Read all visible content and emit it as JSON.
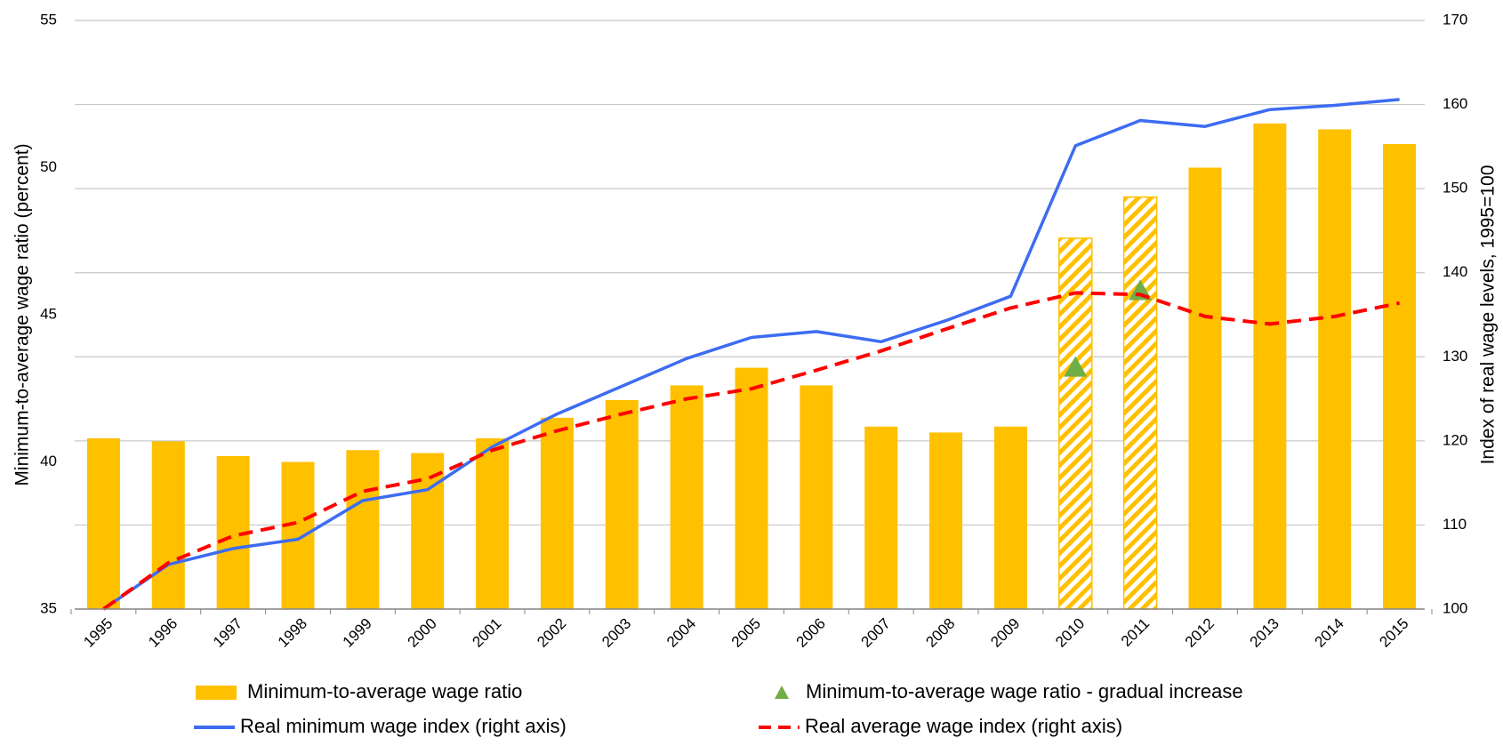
{
  "chart_data": {
    "type": "combo",
    "y_label": "Minimum-to-average wage ratio (percent)",
    "y2_label": "Index of real wage levels, 1995=100",
    "categories": [
      "1995",
      "1996",
      "1997",
      "1998",
      "1999",
      "2000",
      "2001",
      "2002",
      "2003",
      "2004",
      "2005",
      "2006",
      "2007",
      "2008",
      "2009",
      "2010",
      "2011",
      "2012",
      "2013",
      "2014",
      "2015"
    ],
    "ylim": [
      35,
      55
    ],
    "yticks": [
      35,
      40,
      45,
      50,
      55
    ],
    "y2lim": [
      100,
      170
    ],
    "y2ticks": [
      100,
      110,
      120,
      130,
      140,
      150,
      160,
      170
    ],
    "grid": true,
    "series": [
      {
        "name": "Minimum-to-average wage ratio",
        "type": "bar",
        "color": "#ffc000",
        "values": [
          40.8,
          40.7,
          40.2,
          40.0,
          40.4,
          40.3,
          40.8,
          41.5,
          42.1,
          42.6,
          43.2,
          42.6,
          41.2,
          41.0,
          41.2,
          47.6,
          49.0,
          50.0,
          51.5,
          51.3,
          50.8
        ],
        "pattern": [
          "solid",
          "solid",
          "solid",
          "solid",
          "solid",
          "solid",
          "solid",
          "solid",
          "solid",
          "solid",
          "solid",
          "solid",
          "solid",
          "solid",
          "solid",
          "hatched",
          "hatched",
          "solid",
          "solid",
          "solid",
          "solid"
        ]
      },
      {
        "name": "Minimum-to-average wage ratio - gradual increase",
        "type": "scatter",
        "color": "#70ad47",
        "values": [
          null,
          null,
          null,
          null,
          null,
          null,
          null,
          null,
          null,
          null,
          null,
          null,
          null,
          null,
          null,
          43.2,
          45.8,
          null,
          null,
          null,
          null
        ]
      },
      {
        "name": "Real minimum wage index (right axis)",
        "type": "line",
        "axis": "y2",
        "color": "#3d6cf2",
        "dashed": false,
        "values": [
          100,
          105.3,
          107.2,
          108.3,
          112.9,
          114.2,
          119.3,
          123.2,
          126.5,
          129.8,
          132.3,
          133.0,
          131.8,
          134.3,
          137.2,
          155.1,
          158.1,
          157.4,
          159.4,
          159.9,
          160.6
        ]
      },
      {
        "name": "Real average wage index (right axis)",
        "type": "line",
        "axis": "y2",
        "color": "#ff0000",
        "dashed": true,
        "values": [
          100,
          105.5,
          108.7,
          110.3,
          114.0,
          115.5,
          118.9,
          121.2,
          123.2,
          125.0,
          126.2,
          128.4,
          130.7,
          133.3,
          135.8,
          137.6,
          137.4,
          134.8,
          133.9,
          134.8,
          136.4
        ]
      }
    ]
  }
}
